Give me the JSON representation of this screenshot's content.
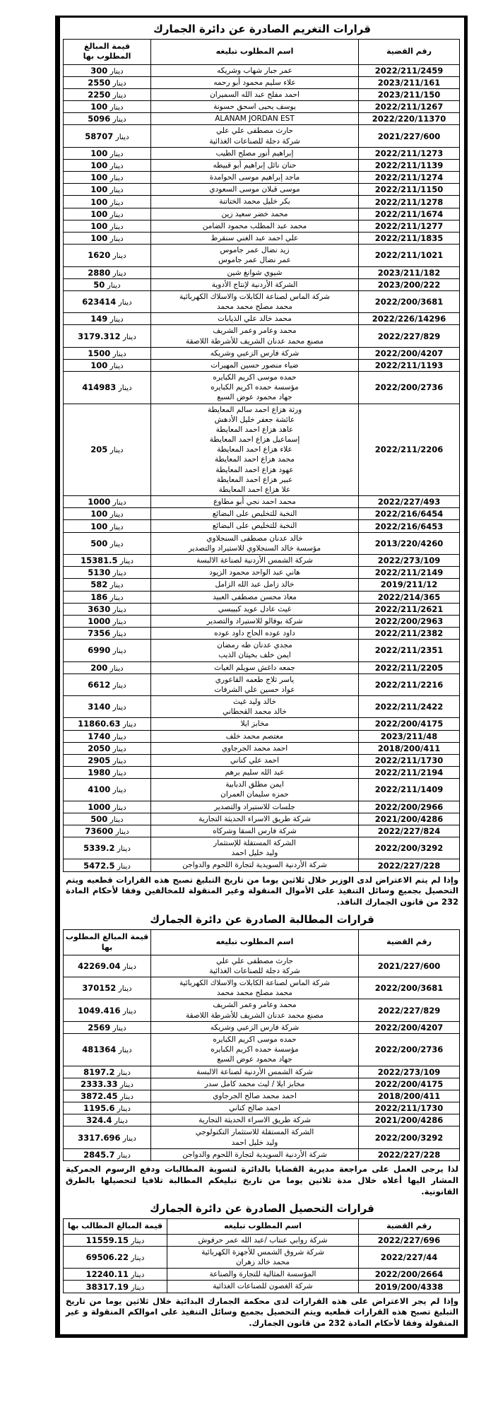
{
  "sections": {
    "fines": {
      "title": "قرارات التغريم الصادرة عن دائرة الجمارك",
      "table": {
        "headers": {
          "case": "رقم القضية",
          "name": "اسم المطلوب تبليغه",
          "amount": [
            "قيمة المبالغ",
            "المطلوب بها"
          ]
        },
        "rows": [
          {
            "case": "2022/211/2459",
            "names": [
              "عمر جبار شهاب وشريكه"
            ],
            "amount": "300 دينار"
          },
          {
            "case": "2023/211/161",
            "names": [
              "علاء سليم محمود أبو رحمه"
            ],
            "amount": "2550 دينار"
          },
          {
            "case": "2023/211/150",
            "names": [
              "احمد مفلح عبد الله السميران"
            ],
            "amount": "2250 دينار"
          },
          {
            "case": "2022/211/1267",
            "names": [
              "يوسف يحيى اسحق حسونة"
            ],
            "amount": "100 دينار"
          },
          {
            "case": "2022/220/11370",
            "names": [
              "ALANAM JORDAN EST"
            ],
            "amount": "5096 دينار"
          },
          {
            "case": "2021/227/600",
            "names": [
              "حارث مصطفى علي علي",
              "شركة دجلة للصناعات الغذائية"
            ],
            "amount": "58707 دينار"
          },
          {
            "case": "2022/211/1273",
            "names": [
              "إبراهيم أنور مصلح الطيب"
            ],
            "amount": "100 دينار"
          },
          {
            "case": "2022/211/1139",
            "names": [
              "حنان نائل إبراهيم أبو قبيطه"
            ],
            "amount": "100 دينار"
          },
          {
            "case": "2022/211/1274",
            "names": [
              "ماجد إبراهيم موسى الحوامدة"
            ],
            "amount": "100 دينار"
          },
          {
            "case": "2022/211/1150",
            "names": [
              "موسى قبلان موسى السعودي"
            ],
            "amount": "100 دينار"
          },
          {
            "case": "2022/211/1278",
            "names": [
              "بكر خليل محمد الختاتنة"
            ],
            "amount": "100 دينار"
          },
          {
            "case": "2022/211/1674",
            "names": [
              "محمد خضر سعيد زين"
            ],
            "amount": "100 دينار"
          },
          {
            "case": "2022/211/1277",
            "names": [
              "محمد عبد المطلب محمود الضامن"
            ],
            "amount": "100 دينار"
          },
          {
            "case": "2022/211/1835",
            "names": [
              "علي احمد عبد الغني سنقرط"
            ],
            "amount": "100 دينار"
          },
          {
            "case": "2022/211/1021",
            "names": [
              "زيد نضال عمر جاموس",
              "عمر نضال عمر جاموس"
            ],
            "amount": "1620 دينار"
          },
          {
            "case": "2023/211/182",
            "names": [
              "شيوي شوانغ شين"
            ],
            "amount": "2880 دينار"
          },
          {
            "case": "2023/200/222",
            "names": [
              "الشركة الأردنية لإنتاج الأدوية"
            ],
            "amount": "50 دينار"
          },
          {
            "case": "2022/200/3681",
            "names": [
              "شركة الماس لصناعة الكابلات والاسلاك الكهربائية",
              "محمد مصلح محمد محمد"
            ],
            "amount": "623414 دينار"
          },
          {
            "case": "2022/226/14296",
            "names": [
              "محمد خالد علي الذيابات"
            ],
            "amount": "149 دينار"
          },
          {
            "case": "2022/227/829",
            "names": [
              "محمد وعامر وعمر الشريف",
              "مصنع محمد عدنان الشريف للأشرطة اللاصقة"
            ],
            "amount": "3179.312 دينار"
          },
          {
            "case": "2022/200/4207",
            "names": [
              "شركة فارس الزعبي وشريكه"
            ],
            "amount": "1500 دينار"
          },
          {
            "case": "2022/211/1193",
            "names": [
              "ضياء منصور حسين المهيرات"
            ],
            "amount": "100 دينار"
          },
          {
            "case": "2022/200/2736",
            "names": [
              "حمده موسى اكريم الكبايره",
              "مؤسسة حمده اكريم الكبايره",
              "جهاد محمود عوض السبع"
            ],
            "amount": "414983 دينار"
          },
          {
            "case": "2022/211/2206",
            "names": [
              "ورثة هزاع احمد سالم المعايطة",
              "عائشة جعفر خليل الأدهش",
              "عاهد هزاع احمد المعايطة",
              "إسماعيل هزاع احمد المعايطة",
              "علاء هزاع احمد المعايطة",
              "محمد هزاع احمد المعايطة",
              "عهود هزاع احمد المعايطة",
              "عبير هزاع احمد المعايطة",
              "علا هزاع احمد المعايطة"
            ],
            "amount": "205 دينار"
          },
          {
            "case": "2022/227/493",
            "names": [
              "محمد احمد نجي أبو مطاوع"
            ],
            "amount": "1000 دينار"
          },
          {
            "case": "2022/216/6454",
            "names": [
              "النخبة للتخليص على البضائع"
            ],
            "amount": "100 دينار"
          },
          {
            "case": "2022/216/6453",
            "names": [
              "النخبة للتخليص على البضائع"
            ],
            "amount": "100 دينار"
          },
          {
            "case": "2013/220/4260",
            "names": [
              "خالد عدنان مصطفى السنجلاوي",
              "مؤسسة خالد السنجلاوي للاستيراد والتصدير"
            ],
            "amount": "500 دينار"
          },
          {
            "case": "2022/273/109",
            "names": [
              "شركة الشمس الأردنية لصناعة الالبسة"
            ],
            "amount": "15381.5 دينار"
          },
          {
            "case": "2022/211/2149",
            "names": [
              "هاني عبد الواحد محمود الزيود"
            ],
            "amount": "5130 دينار"
          },
          {
            "case": "2019/211/12",
            "names": [
              "خالد زامل عبد الله الزامل"
            ],
            "amount": "582 دينار"
          },
          {
            "case": "2022/214/365",
            "names": [
              "معاذ محسن مصطفى العبيد"
            ],
            "amount": "186 دينار"
          },
          {
            "case": "2022/211/2621",
            "names": [
              "غيث عادل عويد كبيبسي"
            ],
            "amount": "3630 دينار"
          },
          {
            "case": "2022/200/2963",
            "names": [
              "شركة بوفالو للاستيراد والتصدير"
            ],
            "amount": "1000 دينار"
          },
          {
            "case": "2022/211/2382",
            "names": [
              "داود عوده الحاج داود عوده"
            ],
            "amount": "7356 دينار"
          },
          {
            "case": "2022/211/2351",
            "names": [
              "مجدي عدنان طه رمضان",
              "ايمن خلف بخيتان الذيب"
            ],
            "amount": "6990 دينار"
          },
          {
            "case": "2022/211/2205",
            "names": [
              "جمعه داغش سويلم الغياث"
            ],
            "amount": "200 دينار"
          },
          {
            "case": "2022/211/2216",
            "names": [
              "ياسر ثلاج طعمه القاعوري",
              "عواد حسين علي الشرفات"
            ],
            "amount": "6612 دينار"
          },
          {
            "case": "2022/211/2422",
            "names": [
              "خالد وليد غيث",
              "خالد محمد القحطاني"
            ],
            "amount": "3140 دينار"
          },
          {
            "case": "2022/200/4175",
            "names": [
              "مخابز ايلا"
            ],
            "amount": "11860.63 دينار"
          },
          {
            "case": "2023/211/48",
            "names": [
              "معتصم محمد خلف"
            ],
            "amount": "1740 دينار"
          },
          {
            "case": "2018/200/411",
            "names": [
              "احمد محمد الجرجاوي"
            ],
            "amount": "2050 دينار"
          },
          {
            "case": "2022/211/1730",
            "names": [
              "احمد علي كناني"
            ],
            "amount": "2905 دينار"
          },
          {
            "case": "2022/211/2194",
            "names": [
              "عبد الله سليم برهم"
            ],
            "amount": "1980 دينار"
          },
          {
            "case": "2022/211/1409",
            "names": [
              "ايمن مطلق الدبابية",
              "حمزه سليمان العمران"
            ],
            "amount": "4100 دينار"
          },
          {
            "case": "2022/200/2966",
            "names": [
              "جلسات للاستيراد والتصدير"
            ],
            "amount": "1000 دينار"
          },
          {
            "case": "2021/200/4286",
            "names": [
              "شركة طريق الاسراء الحديثة التجارية"
            ],
            "amount": "500 دينار"
          },
          {
            "case": "2022/227/824",
            "names": [
              "شركة فارس السقا وشركاه"
            ],
            "amount": "73600 دينار"
          },
          {
            "case": "2022/200/3292",
            "names": [
              "الشركة المستقلة للإستثمار",
              "وليد خليل احمد"
            ],
            "amount": "5339.2 دينار"
          },
          {
            "case": "2022/227/228",
            "names": [
              "شركة الأردنية السويدية لتجارة اللحوم والدواجن"
            ],
            "amount": "5472.5 دينار"
          }
        ]
      },
      "footnote": "وإذا لم يتم الاعتراض لدى الوزير خلال ثلاثين يوما من تاريخ التبليغ تصبح هذه القرارات قطعيه ويتم التحصيل بجميع وسائل التنفيذ على الأموال المنقولة وغير المنقولة للمخالفين وفقا لأحكام المادة 232 من قانون الجمارك النافذ."
    },
    "claims": {
      "title": "قرارات المطالبة الصادرة عن دائرة الجمارك",
      "table": {
        "headers": {
          "case": "رقم القضية",
          "name": "اسم المطلوب تبليغه",
          "amount": [
            "قيمة المبالغ المطلوب بها"
          ]
        },
        "rows": [
          {
            "case": "2021/227/600",
            "names": [
              "حارث مصطفى علي علي",
              "شركة دجلة للصناعات الغذائية"
            ],
            "amount": "42269.04 دينار"
          },
          {
            "case": "2022/200/3681",
            "names": [
              "شركة الماس لصناعة الكابلات والاسلاك الكهربائية",
              "محمد مصلح محمد محمد"
            ],
            "amount": "370152 دينار"
          },
          {
            "case": "2022/227/829",
            "names": [
              "محمد وعامر وعمر الشريف",
              "مصنع محمد عدنان الشريف للأشرطة اللاصقة"
            ],
            "amount": "1049.416 دينار"
          },
          {
            "case": "2022/200/4207",
            "names": [
              "شركة فارس الزعبي وشريكه"
            ],
            "amount": "2569 دينار"
          },
          {
            "case": "2022/200/2736",
            "names": [
              "حمده موسى اكريم الكبايره",
              "مؤسسة حمده اكريم الكبايره",
              "جهاد محمود عوض السبع"
            ],
            "amount": "481364 دينار"
          },
          {
            "case": "2022/273/109",
            "names": [
              "شركة الشمس الأردنية لصناعة الالبسة"
            ],
            "amount": "8197.2 دينار"
          },
          {
            "case": "2022/200/4175",
            "names": [
              "مخابز ايلا / ليث محمد كامل سدر"
            ],
            "amount": "2333.33 دينار"
          },
          {
            "case": "2018/200/411",
            "names": [
              "احمد محمد صالح الجرجاوي"
            ],
            "amount": "3872.45 دينار"
          },
          {
            "case": "2022/211/1730",
            "names": [
              "احمد صالح كناني"
            ],
            "amount": "1195.6 دينار"
          },
          {
            "case": "2021/200/4286",
            "names": [
              "شركة طريق الاسراء الحديثة التجارية"
            ],
            "amount": "324.4 دينار"
          },
          {
            "case": "2022/200/3292",
            "names": [
              "الشركة المستقلة للاستثمار التكنولوجي",
              "وليد خليل احمد"
            ],
            "amount": "3317.696 دينار"
          },
          {
            "case": "2022/227/228",
            "names": [
              "شركة الأردنية السويدية لتجارة اللحوم والدواجن"
            ],
            "amount": "2845.7 دينار"
          }
        ]
      },
      "footnote": "لذا يرجى العمل على مراجعة مديرية القضايا بالدائرة لتسوية المطالبات ودفع الرسوم الجمركية المشار اليها أعلاه خلال مدة ثلاثين يوما من تاريخ تبليغكم المطالبة تلافيا لتحصيلها بالطرق القانونية."
    },
    "collections": {
      "title": "قرارات التحصيل الصادرة عن دائرة الجمارك",
      "table": {
        "headers": {
          "case": "رقم القضية",
          "name": "اسم المطلوب تبليغه",
          "amount": [
            "قيمة المبالغ المطالب بها"
          ]
        },
        "rows": [
          {
            "case": "2022/227/696",
            "names": [
              "شركة روابي عنتاب /عبد الله عمر حرفوش"
            ],
            "amount": "11559.15 دينار"
          },
          {
            "case": "2022/227/44",
            "names": [
              "شركة شروق الشمس للأجهزة الكهربائية",
              "محمد خالد زهران"
            ],
            "amount": "69506.22 دينار"
          },
          {
            "case": "2022/200/2664",
            "names": [
              "المؤسسة المثالية للتجارة والصناعة"
            ],
            "amount": "12240.11 دينار"
          },
          {
            "case": "2019/200/4338",
            "names": [
              "شركة الغصون للصناعات الغذائية"
            ],
            "amount": "38317.19 دينار"
          }
        ]
      },
      "footnote": "وإذا لم يجر الاعتراض على هذه القرارات لدى محكمة الجمارك البدائية خلال ثلاثين يوما من تاريخ التبليغ تصبح هذه القرارات قطعيه ويتم التحصيل بجميع وسائل التنفيذ على اموالكم المنقولة و غير المنقولة وفقا لأحكام المادة 232 من قانون الجمارك."
    }
  }
}
